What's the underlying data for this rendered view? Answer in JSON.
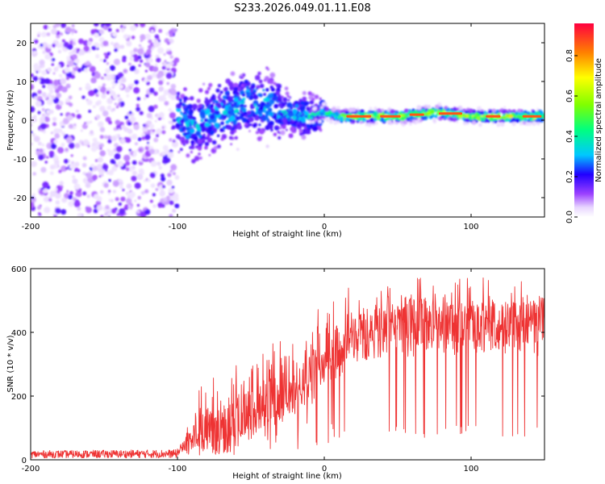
{
  "title": "S233.2026.049.01.11.E08",
  "colorbar": {
    "label": "Normalized spectral amplitude",
    "ticks": [
      "0.0",
      "0.2",
      "0.4",
      "0.6",
      "0.8"
    ],
    "tick_values": [
      0.0,
      0.2,
      0.4,
      0.6,
      0.8
    ],
    "range": [
      0.0,
      0.96
    ]
  },
  "chart_data": [
    {
      "type": "heatmap",
      "title": "S233.2026.049.01.11.E08",
      "xlabel": "Height of straight line (km)",
      "ylabel": "Frequency (Hz)",
      "xlim": [
        -200,
        150
      ],
      "ylim": [
        -25,
        25
      ],
      "xticks": [
        -200,
        -100,
        0,
        100
      ],
      "xtick_labels": [
        "-200",
        "-100",
        "0",
        "100"
      ],
      "yticks": [
        -20,
        -10,
        0,
        10,
        20
      ],
      "ytick_labels": [
        "-20",
        "-10",
        "0",
        "10",
        "20"
      ],
      "colormap": "rainbow",
      "description_points": [
        {
          "x": -200,
          "y_center": 0,
          "spread": 25,
          "amplitude": 0.1
        },
        {
          "x": -100,
          "y_center": 0,
          "spread": 3,
          "amplitude": 0.3
        },
        {
          "x": -50,
          "y_center": 5,
          "spread": 5,
          "amplitude": 0.25
        },
        {
          "x": 0,
          "y_center": 1,
          "spread": 1.5,
          "amplitude": 0.6
        },
        {
          "x": 100,
          "y_center": 1,
          "spread": 1,
          "amplitude": 0.9
        },
        {
          "x": 150,
          "y_center": 1,
          "spread": 1,
          "amplitude": 0.9
        }
      ],
      "ridge": [
        {
          "x": -100,
          "y": 1
        },
        {
          "x": -90,
          "y": -2
        },
        {
          "x": -80,
          "y": 0
        },
        {
          "x": -70,
          "y": 2
        },
        {
          "x": -60,
          "y": 3
        },
        {
          "x": -50,
          "y": 5
        },
        {
          "x": -40,
          "y": 4
        },
        {
          "x": -30,
          "y": 2
        },
        {
          "x": -20,
          "y": 1.5
        },
        {
          "x": -10,
          "y": 1
        },
        {
          "x": 0,
          "y": 2
        },
        {
          "x": 10,
          "y": 1
        },
        {
          "x": 50,
          "y": 1
        },
        {
          "x": 80,
          "y": 2
        },
        {
          "x": 100,
          "y": 1
        },
        {
          "x": 150,
          "y": 1
        }
      ]
    },
    {
      "type": "line",
      "xlabel": "Height of straight line (km)",
      "ylabel": "SNR (10 * v/v)",
      "xlim": [
        -200,
        150
      ],
      "ylim": [
        0,
        600
      ],
      "xticks": [
        -200,
        -100,
        0,
        100
      ],
      "xtick_labels": [
        "-200",
        "-100",
        "0",
        "100"
      ],
      "yticks": [
        0,
        200,
        400,
        600
      ],
      "ytick_labels": [
        "0",
        "200",
        "400",
        "600"
      ],
      "series": [
        {
          "name": "SNR",
          "color": "#ee3333",
          "envelope_x": [
            -200,
            -100,
            -90,
            -80,
            -60,
            -40,
            -20,
            -10,
            0,
            10,
            20,
            40,
            60,
            100,
            150
          ],
          "envelope_mean": [
            18,
            20,
            60,
            70,
            90,
            130,
            200,
            250,
            320,
            380,
            440,
            480,
            490,
            500,
            500
          ],
          "envelope_max": [
            35,
            40,
            220,
            260,
            300,
            380,
            420,
            470,
            500,
            560,
            560,
            570,
            580,
            590,
            570
          ],
          "dips_to": 70
        }
      ]
    }
  ]
}
